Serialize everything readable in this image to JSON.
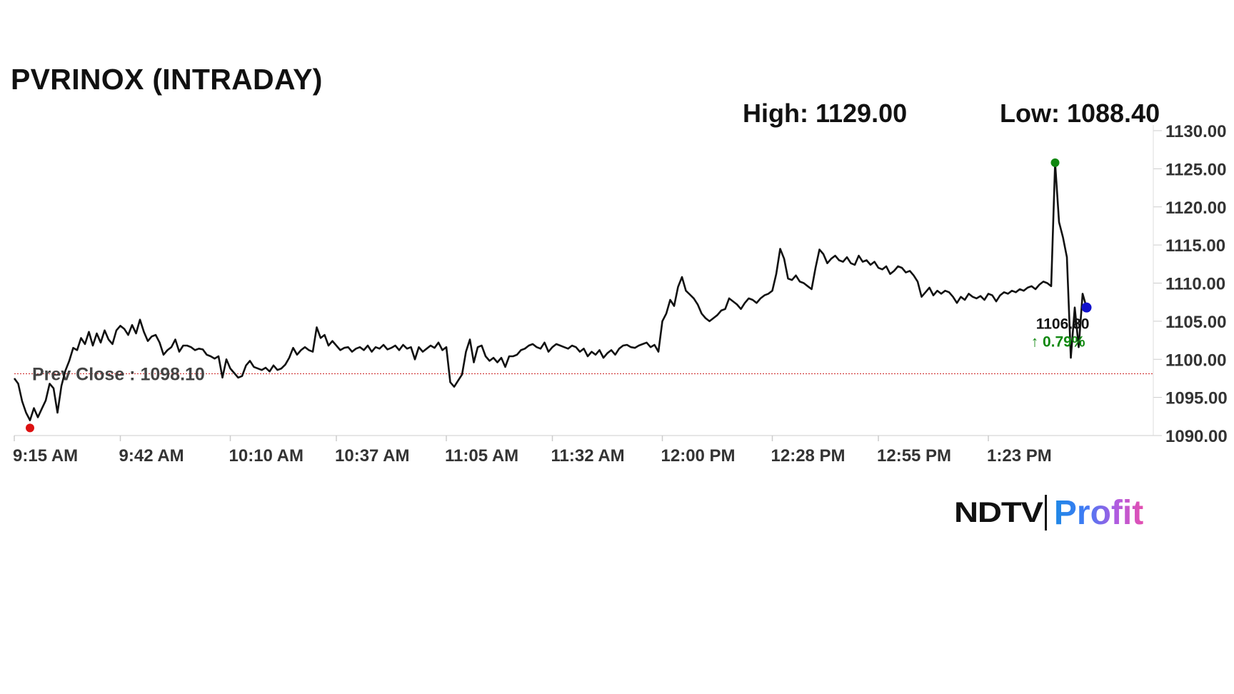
{
  "header": {
    "title": "PVRINOX (INTRADAY)",
    "high_text": "High: 1129.00",
    "low_text": "Low: 1088.40"
  },
  "logo": {
    "brand": "NDTV",
    "product": "Profit"
  },
  "chart_data": {
    "type": "line",
    "title": "PVRINOX (INTRADAY)",
    "xlabel": "",
    "ylabel": "",
    "ylim": [
      1090,
      1130
    ],
    "xlim_minutes": [
      0,
      290
    ],
    "y_ticks": [
      "1130.00",
      "1125.00",
      "1120.00",
      "1115.00",
      "1110.00",
      "1105.00",
      "1100.00",
      "1095.00",
      "1090.00"
    ],
    "x_ticks": [
      {
        "label": "9:15 AM",
        "minute": 0
      },
      {
        "label": "9:42 AM",
        "minute": 27
      },
      {
        "label": "10:10 AM",
        "minute": 55
      },
      {
        "label": "10:37 AM",
        "minute": 82
      },
      {
        "label": "11:05 AM",
        "minute": 110
      },
      {
        "label": "11:32 AM",
        "minute": 137
      },
      {
        "label": "12:00 PM",
        "minute": 165
      },
      {
        "label": "12:28 PM",
        "minute": 193
      },
      {
        "label": "12:55 PM",
        "minute": 220
      },
      {
        "label": "1:23 PM",
        "minute": 248
      }
    ],
    "prev_close": {
      "label": "Prev Close : 1098.10",
      "value": 1098.1,
      "color": "#cc2222"
    },
    "high": {
      "value": 1129.0,
      "display_value": 1125.8,
      "minute": 265,
      "color": "#118811"
    },
    "low": {
      "value": 1088.4,
      "display_value": 1091.0,
      "minute": 4,
      "color": "#dd1111"
    },
    "last": {
      "value": 1106.8,
      "value_label": "1106.80",
      "change_label": "↑ 0.79%",
      "minute": 273,
      "color": "#1111cc",
      "change_color": "#118811"
    },
    "series": [
      {
        "line_color": "#111111",
        "points": [
          [
            0,
            1097.5
          ],
          [
            1,
            1096.8
          ],
          [
            2,
            1094.5
          ],
          [
            3,
            1093.0
          ],
          [
            4,
            1092.0
          ],
          [
            5,
            1093.6
          ],
          [
            6,
            1092.4
          ],
          [
            7,
            1093.5
          ],
          [
            8,
            1094.6
          ],
          [
            9,
            1096.8
          ],
          [
            10,
            1096.2
          ],
          [
            11,
            1093.0
          ],
          [
            12,
            1096.5
          ],
          [
            13,
            1098.5
          ],
          [
            14,
            1099.8
          ],
          [
            15,
            1101.5
          ],
          [
            16,
            1101.2
          ],
          [
            17,
            1102.8
          ],
          [
            18,
            1102.0
          ],
          [
            19,
            1103.6
          ],
          [
            20,
            1101.8
          ],
          [
            21,
            1103.4
          ],
          [
            22,
            1102.2
          ],
          [
            23,
            1103.8
          ],
          [
            24,
            1102.6
          ],
          [
            25,
            1102.0
          ],
          [
            26,
            1103.8
          ],
          [
            27,
            1104.4
          ],
          [
            28,
            1104.0
          ],
          [
            29,
            1103.2
          ],
          [
            30,
            1104.5
          ],
          [
            31,
            1103.4
          ],
          [
            32,
            1105.2
          ],
          [
            33,
            1103.6
          ],
          [
            34,
            1102.4
          ],
          [
            35,
            1103.0
          ],
          [
            36,
            1103.2
          ],
          [
            37,
            1102.2
          ],
          [
            38,
            1100.6
          ],
          [
            39,
            1101.2
          ],
          [
            40,
            1101.6
          ],
          [
            41,
            1102.6
          ],
          [
            42,
            1101.0
          ],
          [
            43,
            1101.8
          ],
          [
            44,
            1101.8
          ],
          [
            45,
            1101.6
          ],
          [
            46,
            1101.2
          ],
          [
            47,
            1101.4
          ],
          [
            48,
            1101.3
          ],
          [
            49,
            1100.6
          ],
          [
            50,
            1100.4
          ],
          [
            51,
            1100.1
          ],
          [
            52,
            1100.4
          ],
          [
            53,
            1097.6
          ],
          [
            54,
            1100.0
          ],
          [
            55,
            1098.8
          ],
          [
            56,
            1098.2
          ],
          [
            57,
            1097.6
          ],
          [
            58,
            1097.8
          ],
          [
            59,
            1099.2
          ],
          [
            60,
            1099.8
          ],
          [
            61,
            1099.0
          ],
          [
            62,
            1098.8
          ],
          [
            63,
            1098.6
          ],
          [
            64,
            1098.9
          ],
          [
            65,
            1098.4
          ],
          [
            66,
            1099.2
          ],
          [
            67,
            1098.6
          ],
          [
            68,
            1098.8
          ],
          [
            69,
            1099.3
          ],
          [
            70,
            1100.2
          ],
          [
            71,
            1101.5
          ],
          [
            72,
            1100.6
          ],
          [
            73,
            1101.2
          ],
          [
            74,
            1101.6
          ],
          [
            75,
            1101.2
          ],
          [
            76,
            1101.0
          ],
          [
            77,
            1104.2
          ],
          [
            78,
            1102.8
          ],
          [
            79,
            1103.2
          ],
          [
            80,
            1101.8
          ],
          [
            81,
            1102.4
          ],
          [
            82,
            1101.8
          ],
          [
            83,
            1101.2
          ],
          [
            84,
            1101.5
          ],
          [
            85,
            1101.6
          ],
          [
            86,
            1101.0
          ],
          [
            87,
            1101.4
          ],
          [
            88,
            1101.6
          ],
          [
            89,
            1101.2
          ],
          [
            90,
            1101.8
          ],
          [
            91,
            1101.0
          ],
          [
            92,
            1101.6
          ],
          [
            93,
            1101.4
          ],
          [
            94,
            1101.9
          ],
          [
            95,
            1101.3
          ],
          [
            96,
            1101.5
          ],
          [
            97,
            1101.8
          ],
          [
            98,
            1101.2
          ],
          [
            99,
            1101.9
          ],
          [
            100,
            1101.4
          ],
          [
            101,
            1101.6
          ],
          [
            102,
            1100.0
          ],
          [
            103,
            1101.6
          ],
          [
            104,
            1101.0
          ],
          [
            105,
            1101.4
          ],
          [
            106,
            1101.8
          ],
          [
            107,
            1101.5
          ],
          [
            108,
            1102.2
          ],
          [
            109,
            1101.2
          ],
          [
            110,
            1101.6
          ],
          [
            111,
            1097.0
          ],
          [
            112,
            1096.4
          ],
          [
            113,
            1097.2
          ],
          [
            114,
            1098.0
          ],
          [
            115,
            1101.0
          ],
          [
            116,
            1102.6
          ],
          [
            117,
            1099.6
          ],
          [
            118,
            1101.6
          ],
          [
            119,
            1101.8
          ],
          [
            120,
            1100.4
          ],
          [
            121,
            1099.8
          ],
          [
            122,
            1100.2
          ],
          [
            123,
            1099.6
          ],
          [
            124,
            1100.2
          ],
          [
            125,
            1099.0
          ],
          [
            126,
            1100.4
          ],
          [
            127,
            1100.4
          ],
          [
            128,
            1100.6
          ],
          [
            129,
            1101.2
          ],
          [
            130,
            1101.4
          ],
          [
            131,
            1101.8
          ],
          [
            132,
            1102.0
          ],
          [
            133,
            1101.6
          ],
          [
            134,
            1101.4
          ],
          [
            135,
            1102.2
          ],
          [
            136,
            1101.0
          ],
          [
            137,
            1101.6
          ],
          [
            138,
            1102.0
          ],
          [
            139,
            1101.8
          ],
          [
            140,
            1101.6
          ],
          [
            141,
            1101.4
          ],
          [
            142,
            1101.8
          ],
          [
            143,
            1101.6
          ],
          [
            144,
            1101.0
          ],
          [
            145,
            1101.4
          ],
          [
            146,
            1100.4
          ],
          [
            147,
            1101.0
          ],
          [
            148,
            1100.6
          ],
          [
            149,
            1101.2
          ],
          [
            150,
            1100.2
          ],
          [
            151,
            1100.8
          ],
          [
            152,
            1101.2
          ],
          [
            153,
            1100.6
          ],
          [
            154,
            1101.4
          ],
          [
            155,
            1101.8
          ],
          [
            156,
            1101.9
          ],
          [
            157,
            1101.6
          ],
          [
            158,
            1101.5
          ],
          [
            159,
            1101.8
          ],
          [
            160,
            1102.0
          ],
          [
            161,
            1102.2
          ],
          [
            162,
            1101.6
          ],
          [
            163,
            1101.9
          ],
          [
            164,
            1101.0
          ],
          [
            165,
            1105.0
          ],
          [
            166,
            1106.0
          ],
          [
            167,
            1107.8
          ],
          [
            168,
            1107.0
          ],
          [
            169,
            1109.5
          ],
          [
            170,
            1110.8
          ],
          [
            171,
            1109.0
          ],
          [
            172,
            1108.5
          ],
          [
            173,
            1108.0
          ],
          [
            174,
            1107.2
          ],
          [
            175,
            1106.0
          ],
          [
            176,
            1105.4
          ],
          [
            177,
            1105.0
          ],
          [
            178,
            1105.4
          ],
          [
            179,
            1105.8
          ],
          [
            180,
            1106.4
          ],
          [
            181,
            1106.6
          ],
          [
            182,
            1108.0
          ],
          [
            183,
            1107.6
          ],
          [
            184,
            1107.2
          ],
          [
            185,
            1106.6
          ],
          [
            186,
            1107.4
          ],
          [
            187,
            1108.0
          ],
          [
            188,
            1107.8
          ],
          [
            189,
            1107.4
          ],
          [
            190,
            1108.0
          ],
          [
            191,
            1108.4
          ],
          [
            192,
            1108.6
          ],
          [
            193,
            1109.0
          ],
          [
            194,
            1111.2
          ],
          [
            195,
            1114.5
          ],
          [
            196,
            1113.2
          ],
          [
            197,
            1110.6
          ],
          [
            198,
            1110.4
          ],
          [
            199,
            1111.0
          ],
          [
            200,
            1110.2
          ],
          [
            201,
            1110.0
          ],
          [
            202,
            1109.6
          ],
          [
            203,
            1109.2
          ],
          [
            204,
            1112.0
          ],
          [
            205,
            1114.4
          ],
          [
            206,
            1113.8
          ],
          [
            207,
            1112.6
          ],
          [
            208,
            1113.2
          ],
          [
            209,
            1113.6
          ],
          [
            210,
            1113.0
          ],
          [
            211,
            1112.8
          ],
          [
            212,
            1113.4
          ],
          [
            213,
            1112.6
          ],
          [
            214,
            1112.4
          ],
          [
            215,
            1113.6
          ],
          [
            216,
            1112.8
          ],
          [
            217,
            1113.0
          ],
          [
            218,
            1112.4
          ],
          [
            219,
            1112.8
          ],
          [
            220,
            1112.0
          ],
          [
            221,
            1111.8
          ],
          [
            222,
            1112.2
          ],
          [
            223,
            1111.2
          ],
          [
            224,
            1111.6
          ],
          [
            225,
            1112.2
          ],
          [
            226,
            1112.0
          ],
          [
            227,
            1111.4
          ],
          [
            228,
            1111.6
          ],
          [
            229,
            1111.0
          ],
          [
            230,
            1110.2
          ],
          [
            231,
            1108.2
          ],
          [
            232,
            1108.8
          ],
          [
            233,
            1109.4
          ],
          [
            234,
            1108.4
          ],
          [
            235,
            1109.0
          ],
          [
            236,
            1108.6
          ],
          [
            237,
            1109.0
          ],
          [
            238,
            1108.8
          ],
          [
            239,
            1108.2
          ],
          [
            240,
            1107.4
          ],
          [
            241,
            1108.2
          ],
          [
            242,
            1107.8
          ],
          [
            243,
            1108.6
          ],
          [
            244,
            1108.2
          ],
          [
            245,
            1108.0
          ],
          [
            246,
            1108.3
          ],
          [
            247,
            1107.8
          ],
          [
            248,
            1108.6
          ],
          [
            249,
            1108.4
          ],
          [
            250,
            1107.6
          ],
          [
            251,
            1108.4
          ],
          [
            252,
            1108.8
          ],
          [
            253,
            1108.6
          ],
          [
            254,
            1109.0
          ],
          [
            255,
            1108.8
          ],
          [
            256,
            1109.2
          ],
          [
            257,
            1109.0
          ],
          [
            258,
            1109.4
          ],
          [
            259,
            1109.6
          ],
          [
            260,
            1109.2
          ],
          [
            261,
            1109.8
          ],
          [
            262,
            1110.2
          ],
          [
            263,
            1110.0
          ],
          [
            264,
            1109.6
          ],
          [
            265,
            1125.8
          ],
          [
            266,
            1118.0
          ],
          [
            267,
            1116.0
          ],
          [
            268,
            1113.4
          ],
          [
            269,
            1100.2
          ],
          [
            270,
            1106.8
          ],
          [
            271,
            1101.6
          ],
          [
            272,
            1108.6
          ],
          [
            273,
            1106.8
          ]
        ]
      }
    ]
  }
}
